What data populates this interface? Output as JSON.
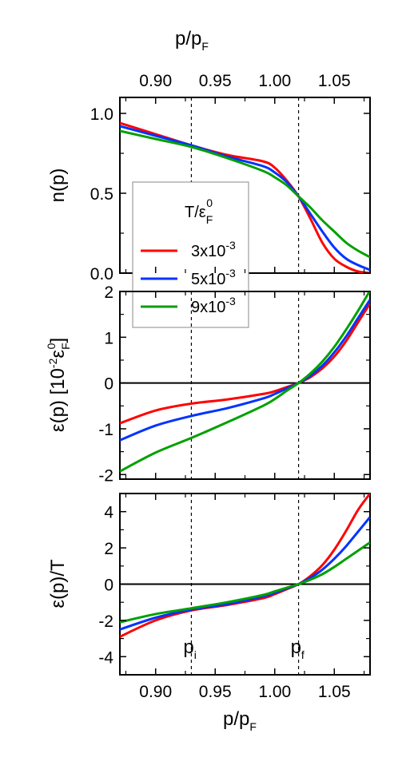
{
  "chart_data": [
    {
      "type": "line",
      "ylabel": "n(p)",
      "top_xlabel": "p/p",
      "top_xlabel_sub": "F",
      "xlim": [
        0.87,
        1.08
      ],
      "ylim": [
        0.0,
        1.1
      ],
      "xticks": [
        0.9,
        0.95,
        1.0,
        1.05
      ],
      "xtick_labels": [
        "0.90",
        "0.95",
        "1.00",
        "1.05"
      ],
      "yticks": [
        0.0,
        0.5,
        1.0
      ],
      "ytick_labels": [
        "0.0",
        "0.5",
        "1.0"
      ],
      "vlines": [
        0.93,
        1.02
      ],
      "grid": false,
      "series": [
        {
          "name": "3x10-3",
          "color": "#ff0000",
          "x": [
            0.87,
            0.9,
            0.93,
            0.96,
            0.99,
            1.0,
            1.01,
            1.02,
            1.03,
            1.04,
            1.05,
            1.06,
            1.07,
            1.08
          ],
          "y": [
            0.94,
            0.87,
            0.8,
            0.74,
            0.7,
            0.66,
            0.58,
            0.48,
            0.34,
            0.19,
            0.09,
            0.04,
            0.01,
            0.0
          ]
        },
        {
          "name": "5x10-3",
          "color": "#0033ff",
          "x": [
            0.87,
            0.9,
            0.93,
            0.96,
            0.99,
            1.0,
            1.01,
            1.02,
            1.03,
            1.04,
            1.05,
            1.06,
            1.07,
            1.08
          ],
          "y": [
            0.92,
            0.86,
            0.8,
            0.73,
            0.67,
            0.63,
            0.57,
            0.48,
            0.37,
            0.26,
            0.16,
            0.09,
            0.05,
            0.02
          ]
        },
        {
          "name": "9x10-3",
          "color": "#00a000",
          "x": [
            0.87,
            0.9,
            0.93,
            0.96,
            0.99,
            1.0,
            1.01,
            1.02,
            1.03,
            1.04,
            1.05,
            1.06,
            1.07,
            1.08
          ],
          "y": [
            0.89,
            0.84,
            0.79,
            0.72,
            0.64,
            0.6,
            0.55,
            0.48,
            0.41,
            0.33,
            0.26,
            0.19,
            0.14,
            0.1
          ]
        }
      ],
      "legend": {
        "placement": "center-left",
        "title": "T/ε",
        "title_sub": "F",
        "title_sup": "0",
        "entries": [
          {
            "color": "#ff0000",
            "label": "3x10",
            "sup": "-3"
          },
          {
            "color": "#0033ff",
            "label": "5x10",
            "sup": "-3"
          },
          {
            "color": "#00a000",
            "label": "9x10",
            "sup": "-3"
          }
        ]
      }
    },
    {
      "type": "line",
      "ylabel_parts": {
        "a": "ε(p)  [10",
        "sup1": "-2",
        "b": "ε",
        "sub": "F",
        "sup2": "0",
        "c": "]"
      },
      "xlim": [
        0.87,
        1.08
      ],
      "ylim": [
        -2.1,
        2.0
      ],
      "yticks": [
        -2,
        -1,
        0,
        1,
        2
      ],
      "ytick_labels": [
        "-2",
        "-1",
        "0",
        "1",
        "2"
      ],
      "hline": 0,
      "vlines": [
        0.93,
        1.02
      ],
      "grid": false,
      "series": [
        {
          "name": "3x10-3",
          "color": "#ff0000",
          "x": [
            0.87,
            0.9,
            0.93,
            0.96,
            0.99,
            1.0,
            1.01,
            1.02,
            1.03,
            1.04,
            1.05,
            1.06,
            1.07,
            1.08
          ],
          "y": [
            -0.88,
            -0.6,
            -0.45,
            -0.36,
            -0.24,
            -0.18,
            -0.09,
            0.0,
            0.13,
            0.32,
            0.58,
            0.92,
            1.33,
            1.74
          ]
        },
        {
          "name": "5x10-3",
          "color": "#0033ff",
          "x": [
            0.87,
            0.9,
            0.93,
            0.96,
            0.99,
            1.0,
            1.01,
            1.02,
            1.03,
            1.04,
            1.05,
            1.06,
            1.07,
            1.08
          ],
          "y": [
            -1.25,
            -0.93,
            -0.72,
            -0.55,
            -0.34,
            -0.24,
            -0.12,
            0.0,
            0.16,
            0.38,
            0.67,
            1.02,
            1.42,
            1.82
          ]
        },
        {
          "name": "9x10-3",
          "color": "#00a000",
          "x": [
            0.87,
            0.9,
            0.93,
            0.96,
            0.99,
            1.0,
            1.01,
            1.02,
            1.03,
            1.04,
            1.05,
            1.06,
            1.07,
            1.08
          ],
          "y": [
            -1.93,
            -1.52,
            -1.2,
            -0.86,
            -0.5,
            -0.35,
            -0.17,
            0.0,
            0.21,
            0.47,
            0.79,
            1.17,
            1.58,
            2.02
          ]
        }
      ]
    },
    {
      "type": "line",
      "ylabel": "ε(p)/T",
      "xlabel": "p/p",
      "xlabel_sub": "F",
      "xlim": [
        0.87,
        1.08
      ],
      "ylim": [
        -5.0,
        5.0
      ],
      "xticks": [
        0.9,
        0.95,
        1.0,
        1.05
      ],
      "xtick_labels": [
        "0.90",
        "0.95",
        "1.00",
        "1.05"
      ],
      "yticks": [
        -4,
        -2,
        0,
        2,
        4
      ],
      "ytick_labels": [
        "-4",
        "-2",
        "0",
        "2",
        "4"
      ],
      "hline": 0,
      "vlines": [
        0.93,
        1.02
      ],
      "grid": false,
      "annotations": [
        {
          "text": "p",
          "sub": "i",
          "x": 0.93
        },
        {
          "text": "p",
          "sub": "f",
          "x": 1.02
        }
      ],
      "series": [
        {
          "name": "3x10-3",
          "color": "#ff0000",
          "x": [
            0.87,
            0.9,
            0.93,
            0.96,
            0.99,
            1.0,
            1.01,
            1.02,
            1.03,
            1.04,
            1.05,
            1.06,
            1.07,
            1.08
          ],
          "y": [
            -2.9,
            -2.0,
            -1.45,
            -1.15,
            -0.78,
            -0.55,
            -0.28,
            0.0,
            0.45,
            1.05,
            1.9,
            2.95,
            4.1,
            5.0
          ]
        },
        {
          "name": "5x10-3",
          "color": "#0033ff",
          "x": [
            0.87,
            0.9,
            0.93,
            0.96,
            0.99,
            1.0,
            1.01,
            1.02,
            1.03,
            1.04,
            1.05,
            1.06,
            1.07,
            1.08
          ],
          "y": [
            -2.5,
            -1.85,
            -1.4,
            -1.1,
            -0.68,
            -0.48,
            -0.24,
            0.0,
            0.35,
            0.8,
            1.4,
            2.1,
            2.9,
            3.7
          ]
        },
        {
          "name": "9x10-3",
          "color": "#00a000",
          "x": [
            0.87,
            0.9,
            0.93,
            0.96,
            0.99,
            1.0,
            1.01,
            1.02,
            1.03,
            1.04,
            1.05,
            1.06,
            1.07,
            1.08
          ],
          "y": [
            -2.1,
            -1.65,
            -1.33,
            -1.0,
            -0.6,
            -0.4,
            -0.2,
            0.0,
            0.25,
            0.55,
            0.95,
            1.4,
            1.85,
            2.3
          ]
        }
      ]
    }
  ]
}
